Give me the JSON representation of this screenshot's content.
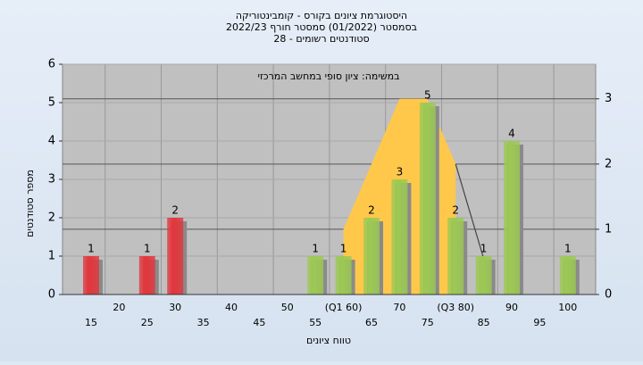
{
  "chart_data": {
    "type": "bar",
    "title": [
      "היסטוגרמת ציונים בקורס - קומבינטוריקה",
      "בסמסטר  (01/2022)  סמסטר חורף 2022/23",
      "סטודנטים רשומים - 28"
    ],
    "annotation": "במשימה: ציון סופי במחשב המרכזי",
    "x_label": "טווח ציונים",
    "y_label": "מספר סטודנטים",
    "categories": [
      "15",
      "20",
      "25",
      "30",
      "35",
      "40",
      "45",
      "50",
      "55",
      "(Q1 60)",
      "65",
      "70",
      "75",
      "(Q3 80)",
      "85",
      "90",
      "95",
      "100"
    ],
    "values": [
      1,
      null,
      1,
      2,
      null,
      null,
      null,
      null,
      1,
      1,
      2,
      3,
      5,
      2,
      1,
      4,
      null,
      1
    ],
    "colors": [
      "#e2363c",
      null,
      "#e2363c",
      "#e2363c",
      null,
      null,
      null,
      null,
      "#9cc953",
      "#9cc953",
      "#9cc953",
      "#9cc953",
      "#9cc953",
      "#9cc953",
      "#9cc953",
      "#9cc953",
      null,
      "#9cc953"
    ],
    "series": [
      {
        "kind": "area",
        "axis": "y2",
        "color": "#ffc84a",
        "values": [
          null,
          null,
          null,
          null,
          null,
          null,
          null,
          null,
          null,
          1,
          2,
          3,
          3,
          2,
          null,
          null,
          null,
          null
        ]
      },
      {
        "kind": "line",
        "axis": "y2",
        "color": "#444444",
        "values": [
          null,
          null,
          null,
          null,
          null,
          null,
          null,
          null,
          null,
          null,
          null,
          null,
          null,
          2,
          0.55,
          null,
          null,
          null
        ]
      }
    ],
    "ylim": [
      0,
      6
    ],
    "yticks": [
      0,
      1,
      2,
      3,
      4,
      5,
      6
    ],
    "y2lim": [
      0,
      3.53
    ],
    "y2ticks": [
      0,
      1,
      2,
      3
    ],
    "grid": true
  }
}
